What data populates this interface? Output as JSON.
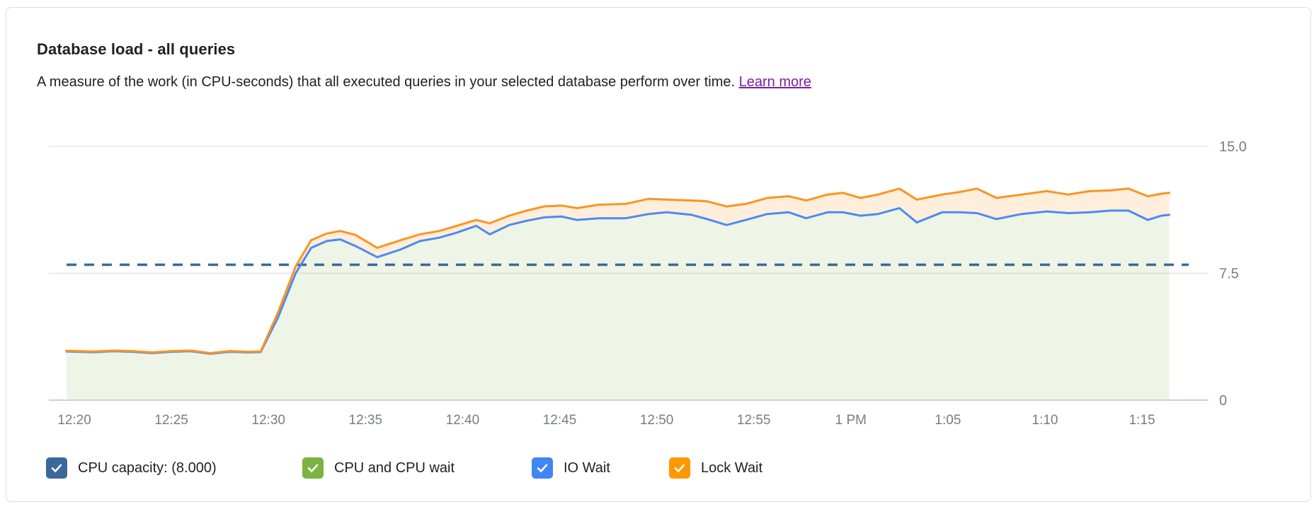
{
  "card": {
    "title": "Database load - all queries",
    "subtitle": "A measure of the work (in CPU-seconds) that all executed queries in your selected database perform over time.",
    "learn_more_label": "Learn more"
  },
  "legend": {
    "items": [
      {
        "label": "CPU capacity: (8.000)",
        "color": "#3a689c",
        "checked": true
      },
      {
        "label": "CPU and CPU wait",
        "color": "#7cb342",
        "checked": true
      },
      {
        "label": "IO Wait",
        "color": "#4285f4",
        "checked": true
      },
      {
        "label": "Lock Wait",
        "color": "#ff9800",
        "checked": true
      }
    ]
  },
  "colors": {
    "grid_line": "#e4e6e9",
    "axis_line": "#ced1d5",
    "tick_text": "#797d81",
    "capacity_dash": "#3a689c",
    "io_wait_line": "#4d8af0",
    "lock_wait_line": "#fb9422",
    "cpu_area_fill": "rgba(124,179,66,0.13)",
    "lock_band_fill": "rgba(248,150,29,0.16)",
    "link": "#7b1fa2"
  },
  "chart_data": {
    "type": "area",
    "title": "Database load - all queries",
    "xlabel": "",
    "ylabel": "",
    "grid": "horizontal",
    "legend_position": "bottom",
    "y_axis": {
      "range": [
        0,
        15
      ],
      "tick_values": [
        15,
        7.5,
        0
      ],
      "tick_labels": [
        "15.0",
        "7.5",
        "0"
      ]
    },
    "x_axis": {
      "tick_labels": [
        "12:20",
        "12:25",
        "12:30",
        "12:35",
        "12:40",
        "12:45",
        "12:50",
        "12:55",
        "1 PM",
        "1:05",
        "1:10",
        "1:15"
      ],
      "tick_minutes_after_noon": [
        20,
        25,
        30,
        35,
        40,
        45,
        50,
        55,
        60,
        65,
        70,
        75
      ],
      "data_range_minutes_after_noon": [
        19.6,
        76.4
      ]
    },
    "reference_line": {
      "name": "CPU capacity",
      "value": 8.0,
      "style": "dashed"
    },
    "sample_minutes_after_noon": [
      19.6,
      21,
      22,
      23,
      24,
      25,
      26,
      27,
      28,
      29,
      29.6,
      30.5,
      31.4,
      32.2,
      33,
      33.7,
      34.5,
      35.6,
      36.8,
      37.8,
      38.8,
      39.7,
      40.7,
      41.4,
      42.4,
      43.3,
      44.2,
      45.1,
      45.9,
      47,
      48.4,
      49.6,
      50.5,
      51.8,
      52.6,
      53.6,
      54.6,
      55.7,
      56.8,
      57.7,
      58.8,
      59.6,
      60.5,
      61.4,
      62.5,
      63.4,
      64.7,
      65.6,
      66.5,
      67.5,
      68.8,
      70.1,
      71.2,
      72.3,
      73.4,
      74.3,
      75.3,
      76,
      76.4
    ],
    "series": [
      {
        "name": "CPU and CPU wait",
        "values": [
          2.88,
          2.83,
          2.89,
          2.86,
          2.78,
          2.86,
          2.89,
          2.74,
          2.86,
          2.82,
          2.84,
          4.9,
          7.5,
          9,
          9.4,
          9.5,
          9.1,
          8.45,
          8.9,
          9.4,
          9.6,
          9.9,
          10.3,
          9.8,
          10.35,
          10.6,
          10.8,
          10.85,
          10.65,
          10.75,
          10.75,
          11,
          11.1,
          10.95,
          10.7,
          10.35,
          10.65,
          11,
          11.1,
          10.75,
          11.1,
          11.1,
          10.9,
          11,
          11.35,
          10.5,
          11.1,
          11.1,
          11.05,
          10.7,
          11,
          11.15,
          11.05,
          11.1,
          11.2,
          11.2,
          10.65,
          10.9,
          10.95
        ]
      },
      {
        "name": "IO Wait",
        "values": [
          2.88,
          2.83,
          2.89,
          2.86,
          2.78,
          2.86,
          2.89,
          2.74,
          2.86,
          2.82,
          2.84,
          4.9,
          7.5,
          9,
          9.4,
          9.5,
          9.1,
          8.45,
          8.9,
          9.4,
          9.6,
          9.9,
          10.3,
          9.8,
          10.35,
          10.6,
          10.8,
          10.85,
          10.65,
          10.75,
          10.75,
          11,
          11.1,
          10.95,
          10.7,
          10.35,
          10.65,
          11,
          11.1,
          10.75,
          11.1,
          11.1,
          10.9,
          11,
          11.35,
          10.5,
          11.1,
          11.1,
          11.05,
          10.7,
          11,
          11.15,
          11.05,
          11.1,
          11.2,
          11.2,
          10.65,
          10.9,
          10.95
        ]
      },
      {
        "name": "Lock Wait",
        "values": [
          2.92,
          2.87,
          2.93,
          2.9,
          2.82,
          2.9,
          2.93,
          2.78,
          2.9,
          2.86,
          2.88,
          5.2,
          7.9,
          9.45,
          9.85,
          10,
          9.75,
          9,
          9.45,
          9.8,
          10,
          10.3,
          10.65,
          10.45,
          10.9,
          11.2,
          11.45,
          11.5,
          11.35,
          11.55,
          11.6,
          11.9,
          11.85,
          11.8,
          11.75,
          11.45,
          11.6,
          11.95,
          12.05,
          11.8,
          12.15,
          12.25,
          11.95,
          12.15,
          12.5,
          11.85,
          12.15,
          12.3,
          12.5,
          11.95,
          12.15,
          12.35,
          12.15,
          12.35,
          12.4,
          12.5,
          12.05,
          12.2,
          12.25
        ]
      }
    ]
  }
}
